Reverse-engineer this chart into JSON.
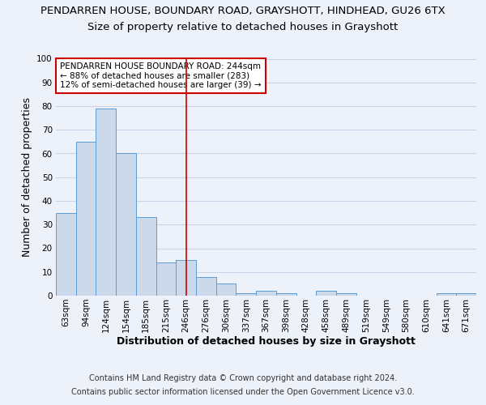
{
  "title1": "PENDARREN HOUSE, BOUNDARY ROAD, GRAYSHOTT, HINDHEAD, GU26 6TX",
  "title2": "Size of property relative to detached houses in Grayshott",
  "xlabel": "Distribution of detached houses by size in Grayshott",
  "ylabel": "Number of detached properties",
  "categories": [
    "63sqm",
    "94sqm",
    "124sqm",
    "154sqm",
    "185sqm",
    "215sqm",
    "246sqm",
    "276sqm",
    "306sqm",
    "337sqm",
    "367sqm",
    "398sqm",
    "428sqm",
    "458sqm",
    "489sqm",
    "519sqm",
    "549sqm",
    "580sqm",
    "610sqm",
    "641sqm",
    "671sqm"
  ],
  "values": [
    35,
    65,
    79,
    60,
    33,
    14,
    15,
    8,
    5,
    1,
    2,
    1,
    0,
    2,
    1,
    0,
    0,
    0,
    0,
    1,
    1
  ],
  "bar_color": "#ccd9ea",
  "bar_edge_color": "#5b9bd5",
  "vline_x": 6,
  "vline_color": "#cc0000",
  "annotation_line1": "PENDARREN HOUSE BOUNDARY ROAD: 244sqm",
  "annotation_line2": "← 88% of detached houses are smaller (283)",
  "annotation_line3": "12% of semi-detached houses are larger (39) →",
  "annotation_box_color": "#ffffff",
  "annotation_box_edgecolor": "#cc0000",
  "ylim": [
    0,
    100
  ],
  "footnote1": "Contains HM Land Registry data © Crown copyright and database right 2024.",
  "footnote2": "Contains public sector information licensed under the Open Government Licence v3.0.",
  "background_color": "#edf1f9",
  "grid_color": "#c8d4e8",
  "title1_fontsize": 9.5,
  "title2_fontsize": 9.5,
  "axis_label_fontsize": 9,
  "tick_fontsize": 7.5,
  "annotation_fontsize": 7.5,
  "footnote_fontsize": 7
}
